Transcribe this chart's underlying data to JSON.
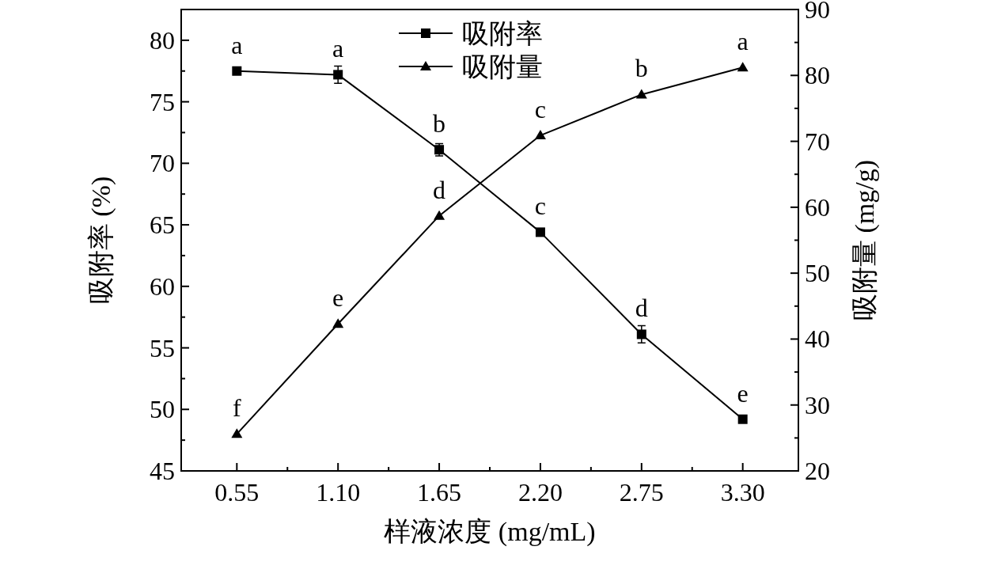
{
  "chart_data": {
    "type": "line",
    "xlabel": "样液浓度 (mg/mL)",
    "ylabel": "吸附率 (%)",
    "y2label": "吸附量 (mg/g)",
    "categories": [
      "0.55",
      "1.10",
      "1.65",
      "2.20",
      "2.75",
      "3.30"
    ],
    "ylim": [
      45,
      82.5
    ],
    "yticks": [
      45,
      {
        "value": 47.5,
        "label": null
      },
      50,
      {
        "value": 52.5,
        "label": null
      },
      55,
      {
        "value": 57.5,
        "label": null
      },
      60,
      {
        "value": 62.5,
        "label": null
      },
      65,
      {
        "value": 67.5,
        "label": null
      },
      70,
      {
        "value": 72.5,
        "label": null
      },
      75,
      {
        "value": 77.5,
        "label": null
      },
      80
    ],
    "y2lim": [
      20,
      90
    ],
    "y2ticks": [
      20,
      {
        "value": 25,
        "label": null
      },
      30,
      {
        "value": 35,
        "label": null
      },
      40,
      {
        "value": 45,
        "label": null
      },
      50,
      {
        "value": 55,
        "label": null
      },
      60,
      {
        "value": 65,
        "label": null
      },
      70,
      {
        "value": 75,
        "label": null
      },
      80,
      {
        "value": 85,
        "label": null
      },
      90
    ],
    "legend": "top",
    "grid": false,
    "line_style": "solid",
    "series": [
      {
        "name": "吸附率",
        "color": "#000000",
        "marker": "square",
        "values": [
          77.5,
          77.2,
          71.1,
          64.4,
          56.1,
          49.2
        ],
        "errors": [
          null,
          0.7,
          0.5,
          null,
          0.7,
          null
        ],
        "value_labels": [
          "a",
          "a",
          "b",
          "c",
          "d",
          "e"
        ]
      },
      {
        "name": "吸附量",
        "color": "#000000",
        "marker": "triangle",
        "axis": "y2",
        "values": [
          25.6,
          42.3,
          58.7,
          70.9,
          77.1,
          81.2
        ],
        "errors": [
          null,
          null,
          null,
          null,
          null,
          null
        ],
        "value_labels": [
          "f",
          "e",
          "d",
          "c",
          "b",
          "a"
        ]
      }
    ]
  }
}
